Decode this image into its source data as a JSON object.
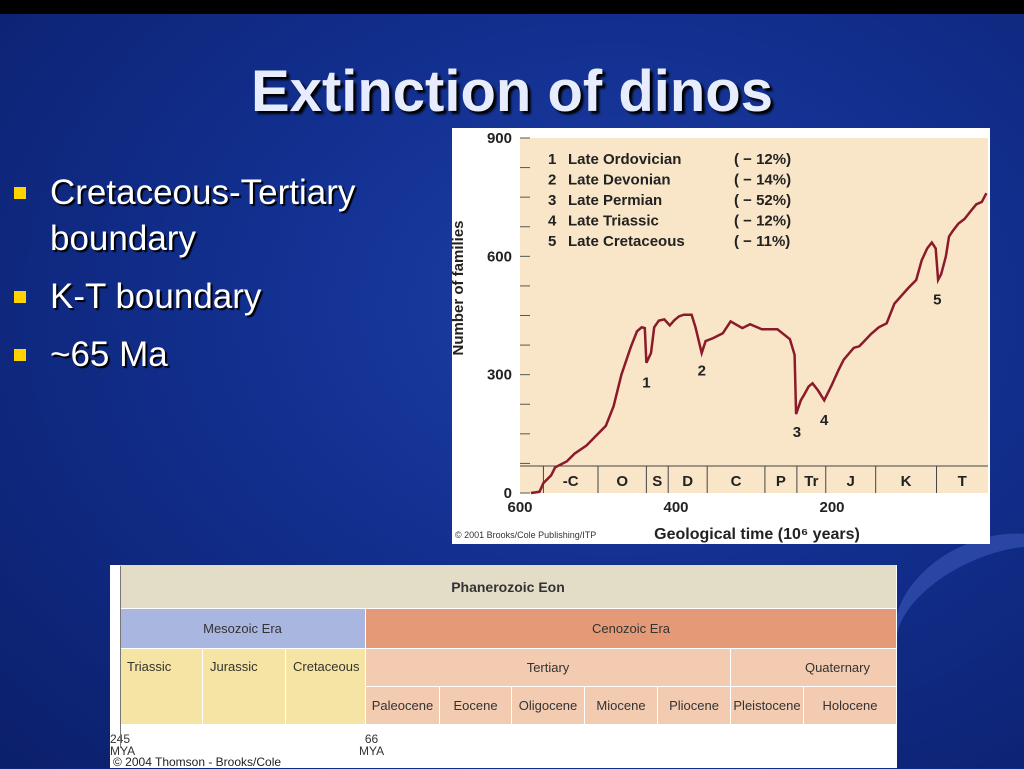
{
  "slide": {
    "title": "Extinction of dinos",
    "bullets": [
      "Cretaceous-Tertiary boundary",
      "K-T boundary",
      "~65 Ma"
    ]
  },
  "colors": {
    "curve": "#8b1a2b",
    "plot_bg": "#f9e6c8",
    "bullet": "#ffd200"
  },
  "chart_data": {
    "type": "line",
    "xlabel": "Geological time (10⁶ years)",
    "ylabel": "Number of families",
    "xlim": [
      600,
      0
    ],
    "ylim": [
      0,
      900
    ],
    "x_ticks": [
      "600",
      "400",
      "200"
    ],
    "y_ticks": [
      "0",
      "300",
      "600",
      "900"
    ],
    "x_tick_values": [
      600,
      400,
      200
    ],
    "y_tick_values": [
      0,
      300,
      600,
      900
    ],
    "credit": "© 2001 Brooks/Cole Publishing/ITP",
    "legend": [
      {
        "num": "1",
        "name": "Late Ordovician",
        "pct": "( − 12%)"
      },
      {
        "num": "2",
        "name": "Late Devonian",
        "pct": "( − 14%)"
      },
      {
        "num": "3",
        "name": "Late Permian",
        "pct": "( − 52%)"
      },
      {
        "num": "4",
        "name": "Late Triassic",
        "pct": "( − 12%)"
      },
      {
        "num": "5",
        "name": "Late Cretaceous",
        "pct": "( − 11%)"
      }
    ],
    "annotations": [
      {
        "label": "1",
        "x": 438,
        "y": 280
      },
      {
        "label": "2",
        "x": 367,
        "y": 310
      },
      {
        "label": "3",
        "x": 245,
        "y": 155
      },
      {
        "label": "4",
        "x": 210,
        "y": 185
      },
      {
        "label": "5",
        "x": 65,
        "y": 490
      }
    ],
    "periods": [
      {
        "label": "-C",
        "start": 570,
        "end": 500
      },
      {
        "label": "O",
        "start": 500,
        "end": 438
      },
      {
        "label": "S",
        "start": 438,
        "end": 410
      },
      {
        "label": "D",
        "start": 410,
        "end": 360
      },
      {
        "label": "C",
        "start": 360,
        "end": 286
      },
      {
        "label": "P",
        "start": 286,
        "end": 245
      },
      {
        "label": "Tr",
        "start": 245,
        "end": 208
      },
      {
        "label": "J",
        "start": 208,
        "end": 144
      },
      {
        "label": "K",
        "start": 144,
        "end": 66
      },
      {
        "label": "T",
        "start": 66,
        "end": 0
      }
    ],
    "x": [
      586,
      575,
      570,
      560,
      555,
      540,
      530,
      515,
      505,
      490,
      480,
      470,
      458,
      450,
      444,
      440,
      438,
      432,
      428,
      422,
      415,
      408,
      402,
      396,
      390,
      380,
      375,
      367,
      362,
      352,
      340,
      330,
      315,
      305,
      290,
      280,
      270,
      254,
      248,
      246,
      240,
      236,
      230,
      225,
      218,
      210,
      200,
      192,
      185,
      172,
      165,
      160,
      150,
      140,
      130,
      120,
      102,
      92,
      85,
      78,
      72,
      67,
      64,
      60,
      54,
      50,
      45,
      38,
      30,
      22,
      15,
      8,
      2
    ],
    "y": [
      0,
      3,
      25,
      45,
      65,
      80,
      100,
      120,
      140,
      170,
      220,
      300,
      370,
      410,
      420,
      418,
      330,
      355,
      420,
      437,
      440,
      425,
      438,
      448,
      452,
      452,
      420,
      355,
      385,
      393,
      405,
      435,
      418,
      428,
      415,
      415,
      415,
      390,
      350,
      200,
      235,
      248,
      270,
      278,
      260,
      235,
      275,
      310,
      338,
      368,
      372,
      382,
      403,
      420,
      430,
      480,
      520,
      540,
      590,
      620,
      635,
      620,
      540,
      555,
      600,
      650,
      665,
      683,
      695,
      715,
      732,
      738,
      760
    ]
  },
  "eon_chart": {
    "eon": "Phanerozoic Eon",
    "eras": [
      "Mesozoic Era",
      "Cenozoic Era"
    ],
    "periods": [
      "Triassic",
      "Jurassic",
      "Cretaceous",
      "Tertiary",
      "Quaternary"
    ],
    "epochs": [
      "Paleocene",
      "Eocene",
      "Oligocene",
      "Miocene",
      "Pliocene",
      "Pleistocene",
      "Holocene"
    ],
    "mya_245": "245",
    "mya_66": "66",
    "mya_unit": "MYA",
    "credit": "© 2004 Thomson - Brooks/Cole"
  }
}
